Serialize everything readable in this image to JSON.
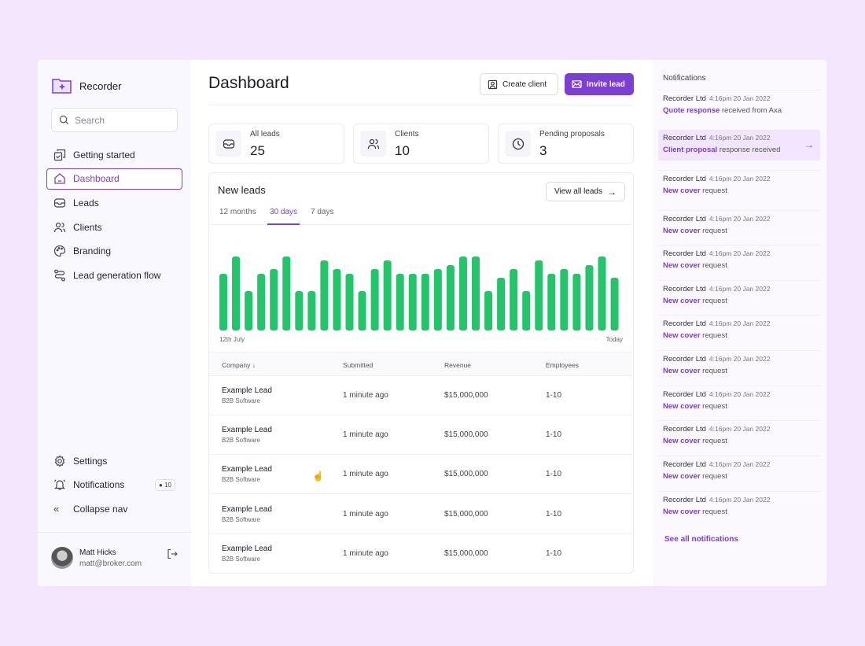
{
  "app": {
    "name": "Recorder",
    "brand_color": "#7c3fd6",
    "chart_color": "#22c56a"
  },
  "sidebar": {
    "search_placeholder": "Search",
    "items": [
      {
        "label": "Getting started",
        "icon": "checklist-icon"
      },
      {
        "label": "Dashboard",
        "icon": "home-icon",
        "active": true
      },
      {
        "label": "Leads",
        "icon": "inbox-icon"
      },
      {
        "label": "Clients",
        "icon": "users-icon"
      },
      {
        "label": "Branding",
        "icon": "palette-icon"
      },
      {
        "label": "Lead generation flow",
        "icon": "flow-icon"
      }
    ],
    "bottom": {
      "settings": "Settings",
      "notifications": "Notifications",
      "notifications_count": "10",
      "collapse": "Collapse nav"
    },
    "user": {
      "name": "Matt Hicks",
      "email": "matt@broker.com"
    }
  },
  "header": {
    "title": "Dashboard",
    "create_client": "Create client",
    "invite_lead": "Invite lead"
  },
  "stats": [
    {
      "label": "All leads",
      "value": "25"
    },
    {
      "label": "Clients",
      "value": "10"
    },
    {
      "label": "Pending proposals",
      "value": "3"
    }
  ],
  "new_leads": {
    "title": "New leads",
    "view_all": "View all leads",
    "tabs": [
      "12 months",
      "30 days",
      "7 days"
    ],
    "active_tab": "30 days",
    "columns": [
      "Company",
      "Submitted",
      "Revenue",
      "Employees"
    ],
    "rows": [
      {
        "company": "Example Lead",
        "industry": "B2B Software",
        "submitted": "1 minute ago",
        "revenue": "$15,000,000",
        "employees": "1-10"
      },
      {
        "company": "Example Lead",
        "industry": "B2B Software",
        "submitted": "1 minute ago",
        "revenue": "$15,000,000",
        "employees": "1-10"
      },
      {
        "company": "Example Lead",
        "industry": "B2B Software",
        "submitted": "1 minute ago",
        "revenue": "$15,000,000",
        "employees": "1-10"
      },
      {
        "company": "Example Lead",
        "industry": "B2B Software",
        "submitted": "1 minute ago",
        "revenue": "$15,000,000",
        "employees": "1-10"
      },
      {
        "company": "Example Lead",
        "industry": "B2B Software",
        "submitted": "1 minute ago",
        "revenue": "$15,000,000",
        "employees": "1-10"
      }
    ]
  },
  "chart_data": {
    "type": "bar",
    "x_start_label": "12th July",
    "x_end_label": "Today",
    "values": [
      72,
      94,
      50,
      72,
      78,
      94,
      50,
      50,
      89,
      78,
      72,
      50,
      78,
      89,
      72,
      72,
      72,
      78,
      83,
      94,
      94,
      50,
      67,
      78,
      50,
      89,
      72,
      78,
      72,
      83,
      94,
      67
    ],
    "grid": false
  },
  "notifications": {
    "title": "Notifications",
    "see_all": "See all notifications",
    "items": [
      {
        "company": "Recorder Ltd",
        "time": "4:16pm 20 Jan 2022",
        "highlight": "Quote response",
        "text": " received from Axa"
      },
      {
        "company": "Recorder Ltd",
        "time": "4:16pm 20 Jan 2022",
        "highlight": "Client proposal",
        "text": " response received",
        "active": true
      },
      {
        "company": "Recorder Ltd",
        "time": "4:16pm 20 Jan 2022",
        "highlight": "New cover",
        "text": " request"
      },
      {
        "company": "Recorder Ltd",
        "time": "4:16pm 20 Jan 2022",
        "highlight": "New cover",
        "text": " request"
      },
      {
        "company": "Recorder Ltd",
        "time": "4:16pm 20 Jan 2022",
        "highlight": "New cover",
        "text": " request"
      },
      {
        "company": "Recorder Ltd",
        "time": "4:16pm 20 Jan 2022",
        "highlight": "New cover",
        "text": " request"
      },
      {
        "company": "Recorder Ltd",
        "time": "4:16pm 20 Jan 2022",
        "highlight": "New cover",
        "text": " request"
      },
      {
        "company": "Recorder Ltd",
        "time": "4:16pm 20 Jan 2022",
        "highlight": "New cover",
        "text": " request"
      },
      {
        "company": "Recorder Ltd",
        "time": "4:16pm 20 Jan 2022",
        "highlight": "New cover",
        "text": " request"
      },
      {
        "company": "Recorder Ltd",
        "time": "4:16pm 20 Jan 2022",
        "highlight": "New cover",
        "text": " request"
      },
      {
        "company": "Recorder Ltd",
        "time": "4:16pm 20 Jan 2022",
        "highlight": "New cover",
        "text": " request"
      },
      {
        "company": "Recorder Ltd",
        "time": "4:16pm 20 Jan 2022",
        "highlight": "New cover",
        "text": " request"
      }
    ]
  }
}
